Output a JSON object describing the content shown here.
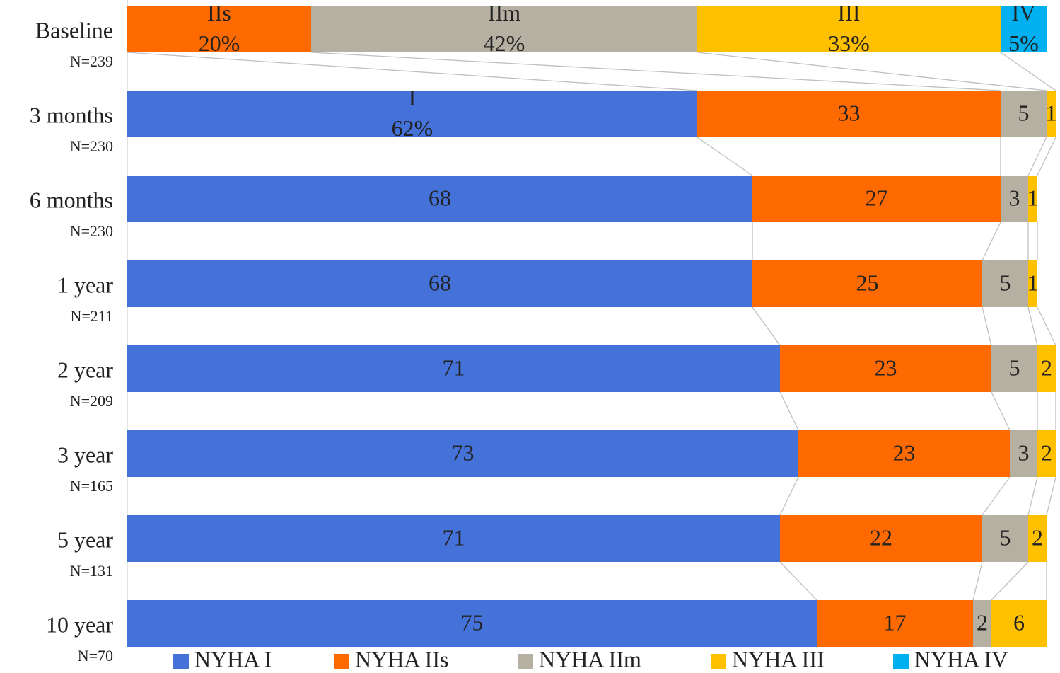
{
  "chart_data": {
    "type": "stacked-bar-horizontal",
    "categories": [
      "Baseline",
      "3 months",
      "6 months",
      "1 year",
      "2 year",
      "3 year",
      "5 year",
      "10 year"
    ],
    "sample_sizes": [
      "N=239",
      "N=230",
      "N=230",
      "N=211",
      "N=209",
      "N=165",
      "N=131",
      "N=70"
    ],
    "xlim": [
      0,
      100
    ],
    "series": [
      {
        "name": "NYHA I",
        "color": "#4472d9",
        "values": [
          null,
          62,
          68,
          68,
          71,
          73,
          71,
          75
        ],
        "value_labels": [
          null,
          "I\n62%",
          "68",
          "68",
          "71",
          "73",
          "71",
          "75"
        ]
      },
      {
        "name": "NYHA IIs",
        "color": "#ff6a00",
        "values": [
          20,
          33,
          27,
          25,
          23,
          23,
          22,
          17
        ],
        "value_labels": [
          "IIs\n20%",
          "33",
          "27",
          "25",
          "23",
          "23",
          "22",
          "17"
        ]
      },
      {
        "name": "NYHA IIm",
        "color": "#b5b0a2",
        "values": [
          42,
          5,
          3,
          5,
          5,
          3,
          5,
          2
        ],
        "value_labels": [
          "IIm\n42%",
          "5",
          "3",
          "5",
          "5",
          "3",
          "5",
          "2"
        ]
      },
      {
        "name": "NYHA III",
        "color": "#ffc000",
        "values": [
          33,
          1,
          1,
          1,
          2,
          2,
          2,
          6
        ],
        "value_labels": [
          "III\n33%",
          "1",
          "1",
          "1",
          "2",
          "2",
          "2",
          "6"
        ]
      },
      {
        "name": "NYHA IV",
        "color": "#00b0f0",
        "values": [
          5,
          null,
          null,
          null,
          null,
          null,
          null,
          null
        ],
        "value_labels": [
          "IV\n5%",
          null,
          null,
          null,
          null,
          null,
          null,
          null
        ]
      }
    ]
  }
}
